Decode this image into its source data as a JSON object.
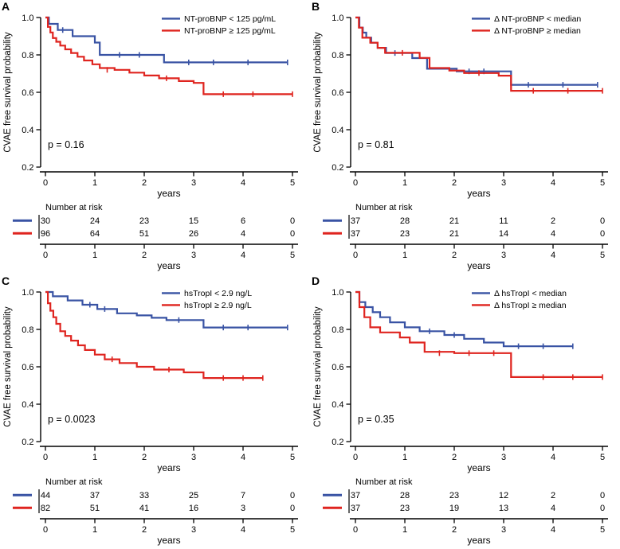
{
  "figure": {
    "background": "#ffffff",
    "colors": {
      "blue": "#3953A4",
      "red": "#DF241F",
      "axis": "#000000"
    },
    "shared": {
      "y_axis_label": "CVAE free survival probability",
      "x_axis_label": "years",
      "y_ticks": [
        "1.0",
        "0.8",
        "0.6",
        "0.4",
        "0.2"
      ],
      "y_tick_values": [
        1.0,
        0.8,
        0.6,
        0.4,
        0.2
      ],
      "x_ticks": [
        0,
        1,
        2,
        3,
        4,
        5
      ],
      "number_at_risk_label": "Number at risk"
    }
  },
  "chart_data": [
    {
      "panel": "A",
      "type": "line",
      "subtype": "kaplan-meier-step",
      "xlabel": "years",
      "ylabel": "CVAE free survival probability",
      "xlim": [
        0,
        5.1
      ],
      "ylim": [
        0.2,
        1.0
      ],
      "p_value_label": "p = 0.16",
      "legend_position": "top-right",
      "series": [
        {
          "name": "NT-proBNP < 125 pg/mL",
          "color": "blue",
          "steps": [
            [
              0,
              1.0
            ],
            [
              0.07,
              0.966
            ],
            [
              0.25,
              0.933
            ],
            [
              0.55,
              0.9
            ],
            [
              1.0,
              0.866
            ],
            [
              1.1,
              0.8
            ],
            [
              2.4,
              0.76
            ],
            [
              4.9,
              0.76
            ]
          ],
          "censors": [
            [
              0.35,
              0.933
            ],
            [
              1.5,
              0.8
            ],
            [
              1.9,
              0.8
            ],
            [
              2.9,
              0.76
            ],
            [
              3.4,
              0.76
            ],
            [
              4.1,
              0.76
            ],
            [
              4.9,
              0.76
            ]
          ]
        },
        {
          "name": "NT-proBNP ≥ 125 pg/mL",
          "color": "red",
          "steps": [
            [
              0,
              1.0
            ],
            [
              0.05,
              0.95
            ],
            [
              0.1,
              0.92
            ],
            [
              0.15,
              0.89
            ],
            [
              0.22,
              0.87
            ],
            [
              0.3,
              0.85
            ],
            [
              0.4,
              0.83
            ],
            [
              0.52,
              0.81
            ],
            [
              0.65,
              0.79
            ],
            [
              0.78,
              0.77
            ],
            [
              0.95,
              0.75
            ],
            [
              1.1,
              0.73
            ],
            [
              1.4,
              0.72
            ],
            [
              1.7,
              0.705
            ],
            [
              2.0,
              0.69
            ],
            [
              2.3,
              0.675
            ],
            [
              2.7,
              0.66
            ],
            [
              3.0,
              0.65
            ],
            [
              3.2,
              0.59
            ],
            [
              5.0,
              0.59
            ]
          ],
          "censors": [
            [
              1.25,
              0.72
            ],
            [
              2.45,
              0.675
            ],
            [
              3.6,
              0.59
            ],
            [
              4.2,
              0.59
            ],
            [
              5.0,
              0.59
            ]
          ]
        }
      ],
      "number_at_risk": {
        "times": [
          0,
          1,
          2,
          3,
          4,
          5
        ],
        "rows": [
          {
            "color": "blue",
            "counts": [
              "30",
              "24",
              "23",
              "15",
              "6",
              "0"
            ]
          },
          {
            "color": "red",
            "counts": [
              "96",
              "64",
              "51",
              "26",
              "4",
              "0"
            ]
          }
        ]
      }
    },
    {
      "panel": "B",
      "type": "line",
      "subtype": "kaplan-meier-step",
      "xlabel": "years",
      "ylabel": "CVAE free survival probability",
      "xlim": [
        0,
        5.1
      ],
      "ylim": [
        0.2,
        1.0
      ],
      "p_value_label": "p = 0.81",
      "legend_position": "top-right",
      "series": [
        {
          "name": "Δ NT-proBNP < median",
          "color": "blue",
          "steps": [
            [
              0,
              1.0
            ],
            [
              0.08,
              0.946
            ],
            [
              0.15,
              0.919
            ],
            [
              0.22,
              0.892
            ],
            [
              0.32,
              0.865
            ],
            [
              0.45,
              0.838
            ],
            [
              0.62,
              0.81
            ],
            [
              1.15,
              0.783
            ],
            [
              1.45,
              0.726
            ],
            [
              2.05,
              0.712
            ],
            [
              3.15,
              0.64
            ],
            [
              4.9,
              0.64
            ]
          ],
          "censors": [
            [
              0.8,
              0.81
            ],
            [
              2.3,
              0.712
            ],
            [
              2.6,
              0.712
            ],
            [
              3.5,
              0.64
            ],
            [
              4.2,
              0.64
            ],
            [
              4.9,
              0.64
            ]
          ]
        },
        {
          "name": "Δ NT-proBNP ≥ median",
          "color": "red",
          "steps": [
            [
              0,
              1.0
            ],
            [
              0.07,
              0.946
            ],
            [
              0.14,
              0.892
            ],
            [
              0.3,
              0.865
            ],
            [
              0.45,
              0.838
            ],
            [
              0.6,
              0.811
            ],
            [
              1.3,
              0.784
            ],
            [
              1.5,
              0.73
            ],
            [
              1.9,
              0.716
            ],
            [
              2.2,
              0.703
            ],
            [
              2.9,
              0.689
            ],
            [
              3.15,
              0.608
            ],
            [
              5.0,
              0.608
            ]
          ],
          "censors": [
            [
              0.95,
              0.811
            ],
            [
              2.5,
              0.703
            ],
            [
              3.6,
              0.608
            ],
            [
              4.3,
              0.608
            ],
            [
              5.0,
              0.608
            ]
          ]
        }
      ],
      "number_at_risk": {
        "times": [
          0,
          1,
          2,
          3,
          4,
          5
        ],
        "rows": [
          {
            "color": "blue",
            "counts": [
              "37",
              "28",
              "21",
              "11",
              "2",
              "0"
            ]
          },
          {
            "color": "red",
            "counts": [
              "37",
              "23",
              "21",
              "14",
              "4",
              "0"
            ]
          }
        ]
      }
    },
    {
      "panel": "C",
      "type": "line",
      "subtype": "kaplan-meier-step",
      "xlabel": "years",
      "ylabel": "CVAE free survival probability",
      "xlim": [
        0,
        5.1
      ],
      "ylim": [
        0.2,
        1.0
      ],
      "p_value_label": "p = 0.0023",
      "legend_position": "top-right",
      "series": [
        {
          "name": "hsTropI < 2.9 ng/L",
          "color": "blue",
          "steps": [
            [
              0,
              1.0
            ],
            [
              0.15,
              0.977
            ],
            [
              0.45,
              0.955
            ],
            [
              0.75,
              0.932
            ],
            [
              1.05,
              0.909
            ],
            [
              1.45,
              0.886
            ],
            [
              1.85,
              0.875
            ],
            [
              2.15,
              0.862
            ],
            [
              2.45,
              0.85
            ],
            [
              3.2,
              0.81
            ],
            [
              4.9,
              0.81
            ]
          ],
          "censors": [
            [
              0.9,
              0.932
            ],
            [
              1.2,
              0.909
            ],
            [
              2.7,
              0.85
            ],
            [
              3.6,
              0.81
            ],
            [
              4.1,
              0.81
            ],
            [
              4.9,
              0.81
            ]
          ]
        },
        {
          "name": "hsTropI ≥ 2.9 ng/L",
          "color": "red",
          "steps": [
            [
              0,
              1.0
            ],
            [
              0.05,
              0.94
            ],
            [
              0.1,
              0.9
            ],
            [
              0.16,
              0.865
            ],
            [
              0.22,
              0.83
            ],
            [
              0.3,
              0.79
            ],
            [
              0.4,
              0.765
            ],
            [
              0.52,
              0.74
            ],
            [
              0.66,
              0.715
            ],
            [
              0.8,
              0.69
            ],
            [
              1.0,
              0.665
            ],
            [
              1.2,
              0.64
            ],
            [
              1.5,
              0.62
            ],
            [
              1.85,
              0.6
            ],
            [
              2.2,
              0.585
            ],
            [
              2.8,
              0.57
            ],
            [
              3.2,
              0.54
            ],
            [
              4.4,
              0.54
            ]
          ],
          "censors": [
            [
              1.35,
              0.64
            ],
            [
              2.5,
              0.585
            ],
            [
              3.6,
              0.54
            ],
            [
              4.0,
              0.54
            ],
            [
              4.4,
              0.54
            ]
          ]
        }
      ],
      "number_at_risk": {
        "times": [
          0,
          1,
          2,
          3,
          4,
          5
        ],
        "rows": [
          {
            "color": "blue",
            "counts": [
              "44",
              "37",
              "33",
              "25",
              "7",
              "0"
            ]
          },
          {
            "color": "red",
            "counts": [
              "82",
              "51",
              "41",
              "16",
              "3",
              "0"
            ]
          }
        ]
      }
    },
    {
      "panel": "D",
      "type": "line",
      "subtype": "kaplan-meier-step",
      "xlabel": "years",
      "ylabel": "CVAE free survival probability",
      "xlim": [
        0,
        5.1
      ],
      "ylim": [
        0.2,
        1.0
      ],
      "p_value_label": "p = 0.35",
      "legend_position": "top-right",
      "series": [
        {
          "name": "Δ hsTropI < median",
          "color": "blue",
          "steps": [
            [
              0,
              1.0
            ],
            [
              0.08,
              0.946
            ],
            [
              0.2,
              0.919
            ],
            [
              0.35,
              0.892
            ],
            [
              0.5,
              0.865
            ],
            [
              0.7,
              0.838
            ],
            [
              1.0,
              0.811
            ],
            [
              1.3,
              0.79
            ],
            [
              1.8,
              0.77
            ],
            [
              2.2,
              0.75
            ],
            [
              2.6,
              0.73
            ],
            [
              3.0,
              0.71
            ],
            [
              4.4,
              0.71
            ]
          ],
          "censors": [
            [
              1.5,
              0.79
            ],
            [
              2.0,
              0.77
            ],
            [
              3.3,
              0.71
            ],
            [
              3.8,
              0.71
            ],
            [
              4.4,
              0.71
            ]
          ]
        },
        {
          "name": "Δ hsTropI ≥ median",
          "color": "red",
          "steps": [
            [
              0,
              1.0
            ],
            [
              0.08,
              0.919
            ],
            [
              0.18,
              0.865
            ],
            [
              0.3,
              0.811
            ],
            [
              0.5,
              0.784
            ],
            [
              0.9,
              0.757
            ],
            [
              1.1,
              0.73
            ],
            [
              1.4,
              0.68
            ],
            [
              2.0,
              0.673
            ],
            [
              3.15,
              0.545
            ],
            [
              5.0,
              0.545
            ]
          ],
          "censors": [
            [
              1.7,
              0.673
            ],
            [
              2.3,
              0.673
            ],
            [
              2.8,
              0.673
            ],
            [
              3.8,
              0.545
            ],
            [
              4.4,
              0.545
            ],
            [
              5.0,
              0.545
            ]
          ]
        }
      ],
      "number_at_risk": {
        "times": [
          0,
          1,
          2,
          3,
          4,
          5
        ],
        "rows": [
          {
            "color": "blue",
            "counts": [
              "37",
              "28",
              "23",
              "12",
              "2",
              "0"
            ]
          },
          {
            "color": "red",
            "counts": [
              "37",
              "23",
              "19",
              "13",
              "4",
              "0"
            ]
          }
        ]
      }
    }
  ]
}
